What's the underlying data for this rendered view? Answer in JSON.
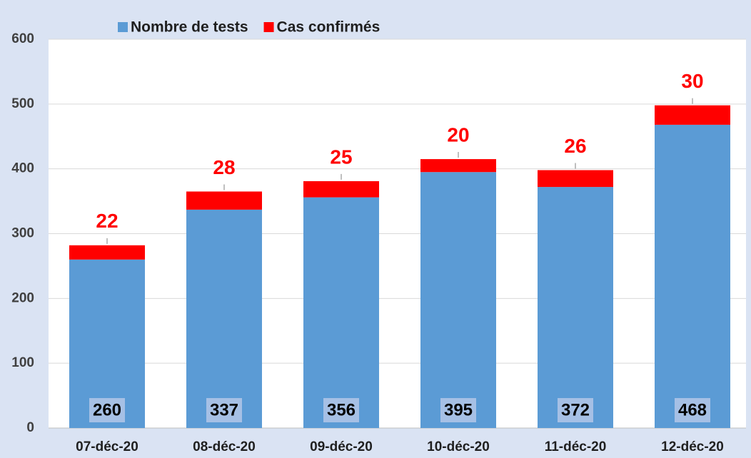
{
  "chart_data": {
    "type": "stacked_bar",
    "categories": [
      "07-déc-20",
      "08-déc-20",
      "09-déc-20",
      "10-déc-20",
      "11-déc-20",
      "12-déc-20"
    ],
    "series": [
      {
        "name": "Nombre de tests",
        "color": "#5b9bd5",
        "values": [
          260,
          337,
          356,
          395,
          372,
          468
        ]
      },
      {
        "name": "Cas confirmés",
        "color": "#ff0000",
        "values": [
          22,
          28,
          25,
          20,
          26,
          30
        ]
      }
    ],
    "ylim": [
      0,
      600
    ],
    "yticks": [
      0,
      100,
      200,
      300,
      400,
      500,
      600
    ],
    "grid": true,
    "legend": "top"
  }
}
